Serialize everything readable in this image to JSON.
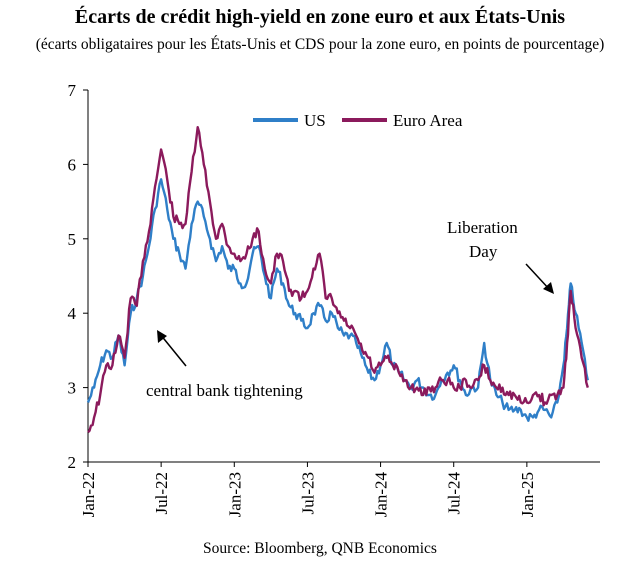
{
  "title": "Écarts de crédit high-yield en zone euro et aux États-Unis",
  "subtitle": "(écarts obligataires pour les États-Unis et CDS pour la zone euro, en points de pourcentage)",
  "source": "Source: Bloomberg, QNB Economics",
  "colors": {
    "us": "#2f7fc8",
    "euro": "#8b1a5c",
    "axis": "#000000"
  },
  "chart_data": {
    "type": "line",
    "title": "Écarts de crédit high-yield en zone euro et aux États-Unis",
    "xlabel": "",
    "ylabel": "",
    "ylim": [
      2,
      7
    ],
    "yticks": [
      "2",
      "3",
      "4",
      "5",
      "6",
      "7"
    ],
    "xlim": [
      0,
      42
    ],
    "xticks": [
      {
        "label": "Jan-22",
        "x": 0
      },
      {
        "label": "Jul-22",
        "x": 6
      },
      {
        "label": "Jan-23",
        "x": 12
      },
      {
        "label": "Jul-23",
        "x": 18
      },
      {
        "label": "Jan-24",
        "x": 24
      },
      {
        "label": "Jul-24",
        "x": 30
      },
      {
        "label": "Jan-25",
        "x": 36
      }
    ],
    "legend": {
      "position": "top-center",
      "entries": [
        "US",
        "Euro Area"
      ]
    },
    "annotations": [
      {
        "text": "central bank tightening",
        "x": 5.5,
        "y": 4.3
      },
      {
        "text": "Liberation",
        "x": 38.7,
        "y": 4.3
      },
      {
        "text": "Day",
        "x": 38.7,
        "y": 4.3
      }
    ],
    "series": [
      {
        "name": "US",
        "x": [
          0,
          0.5,
          1,
          1.5,
          2,
          2.5,
          3,
          3.5,
          4,
          4.5,
          5,
          5.5,
          6,
          6.5,
          7,
          7.5,
          8,
          8.5,
          9,
          9.5,
          10,
          10.5,
          11,
          11.5,
          12,
          12.5,
          13,
          13.5,
          14,
          14.5,
          15,
          15.5,
          16,
          16.5,
          17,
          17.5,
          18,
          18.5,
          19,
          19.5,
          20,
          20.5,
          21,
          21.5,
          22,
          22.5,
          23,
          23.5,
          24,
          24.5,
          25,
          25.5,
          26,
          26.5,
          27,
          27.5,
          28,
          28.5,
          29,
          29.5,
          30,
          30.5,
          31,
          31.5,
          32,
          32.5,
          33,
          33.5,
          34,
          34.5,
          35,
          35.5,
          36,
          36.5,
          37,
          37.5,
          38,
          38.5,
          39,
          39.3,
          39.6,
          40,
          40.5,
          41
        ],
        "values": [
          2.8,
          3.0,
          3.3,
          3.5,
          3.4,
          3.7,
          3.3,
          4.0,
          4.2,
          4.5,
          4.9,
          5.4,
          5.8,
          5.4,
          5.0,
          4.8,
          4.6,
          5.2,
          5.5,
          5.3,
          5.0,
          4.7,
          4.9,
          4.6,
          4.6,
          4.4,
          4.4,
          4.8,
          4.9,
          4.5,
          4.2,
          4.6,
          4.4,
          4.1,
          4.0,
          3.9,
          3.8,
          4.0,
          4.1,
          3.9,
          4.0,
          3.8,
          3.7,
          3.7,
          3.6,
          3.4,
          3.2,
          3.1,
          3.3,
          3.6,
          3.3,
          3.2,
          3.1,
          3.0,
          3.1,
          3.0,
          2.9,
          2.9,
          3.1,
          3.2,
          3.3,
          3.1,
          2.9,
          3.0,
          3.0,
          3.6,
          3.1,
          2.9,
          2.8,
          2.7,
          2.7,
          2.7,
          2.6,
          2.6,
          2.7,
          2.7,
          2.6,
          2.8,
          3.3,
          3.8,
          4.4,
          4.0,
          3.6,
          3.1
        ]
      },
      {
        "name": "Euro Area",
        "x": [
          0,
          0.5,
          1,
          1.5,
          2,
          2.5,
          3,
          3.5,
          4,
          4.5,
          5,
          5.5,
          6,
          6.5,
          7,
          7.5,
          8,
          8.5,
          9,
          9.5,
          10,
          10.5,
          11,
          11.5,
          12,
          12.5,
          13,
          13.5,
          14,
          14.5,
          15,
          15.5,
          16,
          16.5,
          17,
          17.5,
          18,
          18.5,
          19,
          19.5,
          20,
          20.5,
          21,
          21.5,
          22,
          22.5,
          23,
          23.5,
          24,
          24.5,
          25,
          25.5,
          26,
          26.5,
          27,
          27.5,
          28,
          28.5,
          29,
          29.5,
          30,
          30.5,
          31,
          31.5,
          32,
          32.5,
          33,
          33.5,
          34,
          34.5,
          35,
          35.5,
          36,
          36.5,
          37,
          37.5,
          38,
          38.5,
          39,
          39.3,
          39.6,
          40,
          40.5,
          41
        ],
        "values": [
          2.4,
          2.6,
          2.9,
          3.3,
          3.3,
          3.7,
          3.4,
          4.2,
          4.1,
          4.7,
          5.1,
          5.7,
          6.2,
          5.8,
          5.3,
          5.2,
          5.2,
          5.9,
          6.5,
          6.0,
          5.5,
          5.0,
          5.2,
          4.9,
          4.8,
          4.7,
          4.8,
          5.0,
          5.1,
          4.6,
          4.4,
          4.8,
          4.7,
          4.3,
          4.3,
          4.2,
          4.3,
          4.6,
          4.8,
          4.2,
          4.2,
          4.0,
          3.9,
          3.8,
          3.7,
          3.5,
          3.4,
          3.2,
          3.3,
          3.4,
          3.3,
          3.2,
          3.1,
          3.0,
          3.0,
          2.9,
          3.0,
          3.0,
          3.1,
          3.1,
          3.0,
          3.0,
          3.1,
          3.0,
          3.1,
          3.3,
          3.1,
          3.0,
          3.0,
          2.9,
          2.9,
          2.8,
          2.8,
          2.9,
          2.9,
          2.8,
          2.9,
          2.9,
          3.0,
          3.6,
          4.3,
          3.8,
          3.4,
          3.0
        ]
      }
    ]
  }
}
